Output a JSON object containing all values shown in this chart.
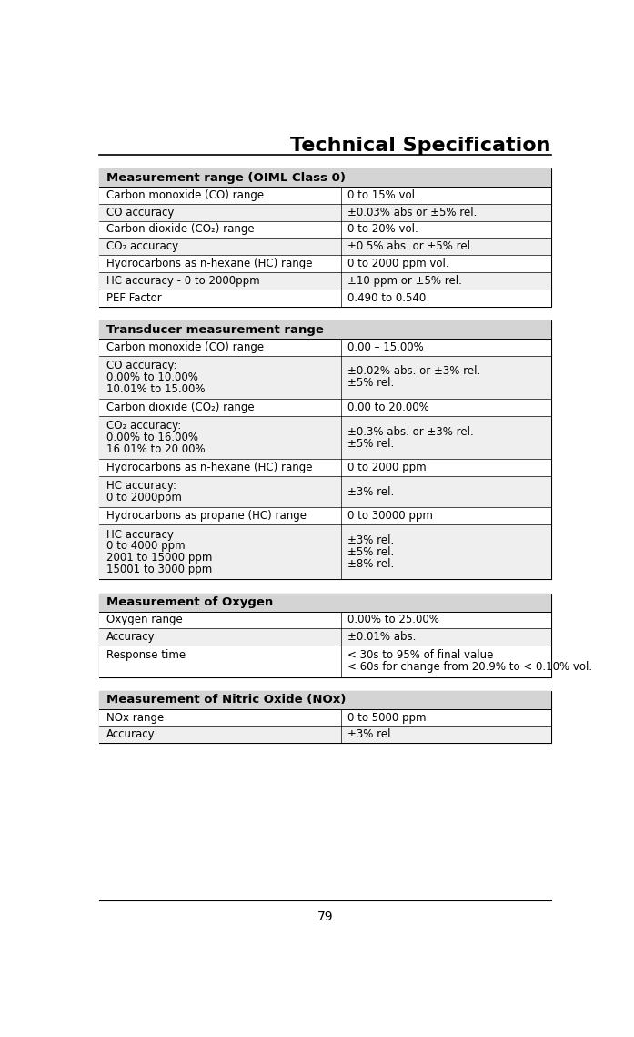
{
  "title": "Technical Specification",
  "page_number": "79",
  "background_color": "#ffffff",
  "header_bg_color": "#d4d4d4",
  "row_alt_color": "#efefef",
  "border_color": "#000000",
  "col_split": 0.535,
  "tables": [
    {
      "header": "Measurement range (OIML Class 0)",
      "rows": [
        {
          "col1": "Carbon monoxide (CO) range",
          "col2": "0 to 15% vol.",
          "shaded": false,
          "multiline": false
        },
        {
          "col1": "CO accuracy",
          "col2": "±0.03% abs or ±5% rel.",
          "shaded": true,
          "multiline": false
        },
        {
          "col1": "Carbon dioxide (CO₂) range",
          "col2": "0 to 20% vol.",
          "shaded": false,
          "multiline": false
        },
        {
          "col1": "CO₂ accuracy",
          "col2": "±0.5% abs. or ±5% rel.",
          "shaded": true,
          "multiline": false
        },
        {
          "col1": "Hydrocarbons as n-hexane (HC) range",
          "col2": "0 to 2000 ppm vol.",
          "shaded": false,
          "multiline": false
        },
        {
          "col1": "HC accuracy - 0 to 2000ppm",
          "col2": "±10 ppm or ±5% rel.",
          "shaded": true,
          "multiline": false
        },
        {
          "col1": "PEF Factor",
          "col2": "0.490 to 0.540",
          "shaded": false,
          "multiline": false
        }
      ]
    },
    {
      "header": "Transducer measurement range",
      "rows": [
        {
          "col1": "Carbon monoxide (CO) range",
          "col2": "0.00 – 15.00%",
          "shaded": false,
          "multiline": false
        },
        {
          "col1": "CO accuracy:\n0.00% to 10.00%\n10.01% to 15.00%",
          "col2": "±0.02% abs. or ±3% rel.\n±5% rel.",
          "shaded": true,
          "multiline": true
        },
        {
          "col1": "Carbon dioxide (CO₂) range",
          "col2": "0.00 to 20.00%",
          "shaded": false,
          "multiline": false
        },
        {
          "col1": "CO₂ accuracy:\n0.00% to 16.00%\n16.01% to 20.00%",
          "col2": "±0.3% abs. or ±3% rel.\n±5% rel.",
          "shaded": true,
          "multiline": true
        },
        {
          "col1": "Hydrocarbons as n-hexane (HC) range",
          "col2": "0 to 2000 ppm",
          "shaded": false,
          "multiline": false
        },
        {
          "col1": "HC accuracy:\n0 to 2000ppm",
          "col2": "±3% rel.",
          "shaded": true,
          "multiline": true
        },
        {
          "col1": "Hydrocarbons as propane (HC) range",
          "col2": "0 to 30000 ppm",
          "shaded": false,
          "multiline": false
        },
        {
          "col1": "HC accuracy\n0 to 4000 ppm\n2001 to 15000 ppm\n15001 to 3000 ppm",
          "col2": "±3% rel.\n±5% rel.\n±8% rel.",
          "shaded": true,
          "multiline": true
        }
      ]
    },
    {
      "header": "Measurement of Oxygen",
      "rows": [
        {
          "col1": "Oxygen range",
          "col2": "0.00% to 25.00%",
          "shaded": false,
          "multiline": false
        },
        {
          "col1": "Accuracy",
          "col2": "±0.01% abs.",
          "shaded": true,
          "multiline": false
        },
        {
          "col1": "Response time",
          "col2": "< 30s to 95% of final value\n< 60s for change from 20.9% to < 0.10% vol.",
          "shaded": false,
          "multiline": true
        }
      ]
    },
    {
      "header": "Measurement of Nitric Oxide (NOx)",
      "rows": [
        {
          "col1": "NOx range",
          "col2": "0 to 5000 ppm",
          "shaded": false,
          "multiline": false
        },
        {
          "col1": "Accuracy",
          "col2": "±3% rel.",
          "shaded": true,
          "multiline": false
        }
      ]
    }
  ]
}
